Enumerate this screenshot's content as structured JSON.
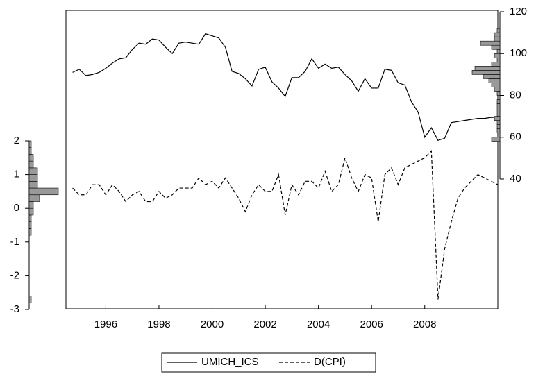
{
  "chart_data": [
    {
      "type": "line",
      "x": [
        1994.75,
        1995,
        1995.25,
        1995.5,
        1995.75,
        1996,
        1996.25,
        1996.5,
        1996.75,
        1997,
        1997.25,
        1997.5,
        1997.75,
        1998,
        1998.25,
        1998.5,
        1998.75,
        1999,
        1999.25,
        1999.5,
        1999.75,
        2000,
        2000.25,
        2000.5,
        2000.75,
        2001,
        2001.25,
        2001.5,
        2001.75,
        2002,
        2002.25,
        2002.5,
        2002.75,
        2003,
        2003.25,
        2003.5,
        2003.75,
        2004,
        2004.25,
        2004.5,
        2004.75,
        2005,
        2005.25,
        2005.5,
        2005.75,
        2006,
        2006.25,
        2006.5,
        2006.75,
        2007,
        2007.25,
        2007.5,
        2007.75,
        2008,
        2008.25,
        2008.5,
        2008.75,
        2009,
        2009.25,
        2009.5,
        2009.75,
        2010,
        2010.25,
        2010.5,
        2010.75
      ],
      "xlim": [
        1994.5,
        2010.75
      ],
      "xticks": [
        1996,
        1998,
        2000,
        2002,
        2004,
        2006,
        2008
      ],
      "ylim": [
        -3,
        2
      ],
      "yticks": [
        -3,
        -2,
        -1,
        0,
        1,
        2
      ],
      "y2lim": [
        40,
        120
      ],
      "y2ticks": [
        40,
        60,
        80,
        100,
        120
      ],
      "legend": "bottom",
      "series": [
        {
          "name": "UMICH_ICS",
          "color": "#000000",
          "dash": "solid",
          "axis": "y2",
          "values": [
            91,
            92.5,
            89.5,
            90,
            91,
            93,
            95.5,
            97.5,
            98,
            102,
            105,
            104.5,
            107,
            106.5,
            103,
            100,
            105,
            105.5,
            105,
            104.5,
            109.5,
            108.5,
            107.5,
            103,
            91.5,
            90.5,
            88,
            84.5,
            92.5,
            93.5,
            86.5,
            83.5,
            79.5,
            88.5,
            88.5,
            91.5,
            97.5,
            93,
            95,
            93,
            93.5,
            90,
            87,
            82,
            88,
            83.5,
            83.5,
            92.5,
            92,
            86,
            85,
            77,
            72,
            60,
            64.5,
            58.5,
            59.5,
            67,
            67.5,
            68,
            68.5,
            69,
            69,
            69.5,
            69.5
          ]
        },
        {
          "name": "D(CPI)",
          "color": "#000000",
          "dash": "dashed",
          "values": [
            0.6,
            0.4,
            0.4,
            0.7,
            0.7,
            0.4,
            0.7,
            0.5,
            0.2,
            0.4,
            0.5,
            0.2,
            0.2,
            0.5,
            0.3,
            0.4,
            0.6,
            0.6,
            0.6,
            0.9,
            0.7,
            0.8,
            0.6,
            0.9,
            0.6,
            0.3,
            -0.1,
            0.4,
            0.7,
            0.5,
            0.5,
            1.0,
            -0.2,
            0.7,
            0.4,
            0.8,
            0.8,
            0.6,
            1.1,
            0.5,
            0.7,
            1.5,
            0.9,
            0.5,
            1.0,
            0.9,
            -0.4,
            1.0,
            1.2,
            0.7,
            1.2,
            1.3,
            1.4,
            1.5,
            1.7,
            -2.7,
            -1.2,
            -0.4,
            0.3,
            0.6,
            0.8,
            1.0,
            0.9,
            0.8,
            0.7
          ]
        }
      ]
    },
    {
      "type": "histogram",
      "axis": "y",
      "side": "left",
      "color": "#999999",
      "bins": [
        -2.8,
        -2.6,
        -2.4,
        -2.2,
        -2.0,
        -1.8,
        -1.6,
        -1.4,
        -1.2,
        -1.0,
        -0.8,
        -0.6,
        -0.4,
        -0.2,
        0.0,
        0.2,
        0.4,
        0.6,
        0.8,
        1.0,
        1.2,
        1.4,
        1.6,
        1.8,
        2.0
      ],
      "counts": [
        1,
        0,
        0,
        0,
        0,
        0,
        0,
        0,
        0,
        0,
        1,
        1,
        1,
        2,
        2,
        5,
        14,
        4,
        4,
        4,
        2,
        2,
        1,
        1
      ]
    },
    {
      "type": "histogram",
      "axis": "y2",
      "side": "right",
      "color": "#999999",
      "bins": [
        56,
        58,
        60,
        62,
        64,
        66,
        68,
        70,
        72,
        74,
        76,
        78,
        80,
        82,
        84,
        86,
        88,
        90,
        92,
        94,
        96,
        98,
        100,
        102,
        104,
        106,
        108,
        110,
        112
      ],
      "counts": [
        0,
        3,
        0,
        1,
        1,
        1,
        2,
        1,
        1,
        1,
        1,
        0,
        1,
        2,
        3,
        4,
        6,
        10,
        9,
        3,
        1,
        2,
        1,
        3,
        7,
        2,
        2,
        1
      ]
    }
  ]
}
